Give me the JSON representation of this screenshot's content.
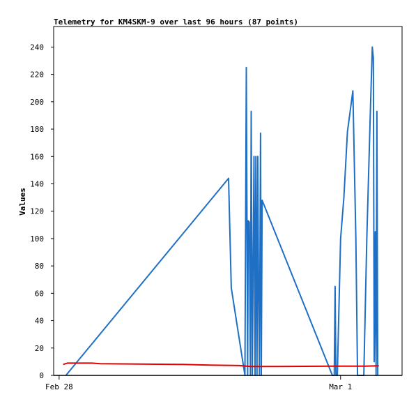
{
  "chart_data": {
    "type": "line",
    "title": "Telemetry for KM4SKM-9 over last 96 hours (87 points)",
    "ylabel": "Values",
    "xlabel": "",
    "ylim": [
      0,
      255
    ],
    "xlim": [
      -0.2,
      12.55
    ],
    "yticks": [
      0,
      20,
      40,
      60,
      80,
      100,
      120,
      140,
      160,
      180,
      200,
      220,
      240
    ],
    "xticks": [
      {
        "label": "Feb 28",
        "x": 0
      },
      {
        "label": "Mar 1",
        "x": 10.3
      }
    ],
    "grid": false,
    "series": [
      {
        "color": "#1f6fc4",
        "points": [
          [
            0.25,
            0
          ],
          [
            6.2,
            144
          ],
          [
            6.3,
            64
          ],
          [
            6.8,
            0
          ],
          [
            6.85,
            225
          ],
          [
            6.9,
            0
          ],
          [
            6.92,
            113
          ],
          [
            6.96,
            112
          ],
          [
            7.0,
            0
          ],
          [
            7.03,
            193
          ],
          [
            7.07,
            0
          ],
          [
            7.1,
            80
          ],
          [
            7.13,
            160
          ],
          [
            7.17,
            0
          ],
          [
            7.2,
            160
          ],
          [
            7.24,
            0
          ],
          [
            7.27,
            160
          ],
          [
            7.3,
            60
          ],
          [
            7.33,
            0
          ],
          [
            7.37,
            177
          ],
          [
            7.4,
            0
          ],
          [
            7.43,
            128
          ],
          [
            10.0,
            0
          ],
          [
            10.07,
            0
          ],
          [
            10.1,
            65
          ],
          [
            10.13,
            0
          ],
          [
            10.18,
            0
          ],
          [
            10.3,
            100
          ],
          [
            10.42,
            130
          ],
          [
            10.55,
            178
          ],
          [
            10.75,
            208
          ],
          [
            10.86,
            100
          ],
          [
            10.92,
            0
          ],
          [
            11.15,
            0
          ],
          [
            11.26,
            100
          ],
          [
            11.4,
            200
          ],
          [
            11.46,
            240
          ],
          [
            11.5,
            232
          ],
          [
            11.53,
            10
          ],
          [
            11.57,
            105
          ],
          [
            11.6,
            0
          ],
          [
            11.63,
            193
          ],
          [
            11.66,
            0
          ]
        ]
      },
      {
        "color": "#e00000",
        "points": [
          [
            0.15,
            8
          ],
          [
            0.3,
            9
          ],
          [
            1.2,
            9
          ],
          [
            1.5,
            8.5
          ],
          [
            4.5,
            8
          ],
          [
            5.5,
            7.5
          ],
          [
            6.6,
            7.2
          ],
          [
            7.0,
            6.5
          ],
          [
            8.0,
            6.5
          ],
          [
            10.0,
            6.8
          ],
          [
            11.2,
            6.8
          ],
          [
            11.7,
            7
          ]
        ]
      },
      {
        "color": "#000000",
        "points": [
          [
            -0.2,
            0
          ],
          [
            12.55,
            0
          ]
        ]
      }
    ]
  }
}
